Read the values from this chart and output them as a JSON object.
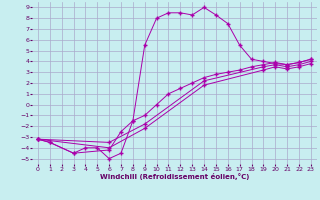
{
  "xlabel": "Windchill (Refroidissement éolien,°C)",
  "bg_color": "#c8eef0",
  "line_color": "#aa00aa",
  "grid_color": "#aaaacc",
  "xlim": [
    -0.5,
    23.5
  ],
  "ylim": [
    -5.5,
    9.5
  ],
  "xticks": [
    0,
    1,
    2,
    3,
    4,
    5,
    6,
    7,
    8,
    9,
    10,
    11,
    12,
    13,
    14,
    15,
    16,
    17,
    18,
    19,
    20,
    21,
    22,
    23
  ],
  "yticks": [
    -5,
    -4,
    -3,
    -2,
    -1,
    0,
    1,
    2,
    3,
    4,
    5,
    6,
    7,
    8,
    9
  ],
  "line1_x": [
    0,
    1,
    3,
    4,
    5,
    6,
    7,
    8,
    9,
    10,
    11,
    12,
    13,
    14,
    15,
    16,
    17,
    18,
    19,
    20,
    21,
    22,
    23
  ],
  "line1_y": [
    -3.2,
    -3.5,
    -4.5,
    -4.0,
    -4.0,
    -5.0,
    -4.5,
    -1.5,
    5.5,
    8.0,
    8.5,
    8.5,
    8.3,
    9.0,
    8.3,
    7.5,
    5.5,
    4.2,
    4.0,
    3.8,
    3.7,
    3.9,
    4.2
  ],
  "line2_x": [
    0,
    1,
    3,
    6,
    7,
    8,
    9,
    10,
    11,
    12,
    13,
    14,
    15,
    16,
    17,
    18,
    19,
    20,
    21,
    22,
    23
  ],
  "line2_y": [
    -3.2,
    -3.5,
    -4.5,
    -4.2,
    -2.5,
    -1.5,
    -1.0,
    0.0,
    1.0,
    1.5,
    2.0,
    2.5,
    2.8,
    3.0,
    3.2,
    3.5,
    3.7,
    3.9,
    3.7,
    3.9,
    4.2
  ],
  "line3_x": [
    0,
    6,
    9,
    14,
    19,
    20,
    21,
    22,
    23
  ],
  "line3_y": [
    -3.2,
    -3.5,
    -1.8,
    2.2,
    3.5,
    3.7,
    3.5,
    3.7,
    4.0
  ],
  "line4_x": [
    0,
    6,
    9,
    14,
    19,
    20,
    21,
    22,
    23
  ],
  "line4_y": [
    -3.2,
    -4.0,
    -2.2,
    1.8,
    3.2,
    3.5,
    3.3,
    3.5,
    3.8
  ]
}
